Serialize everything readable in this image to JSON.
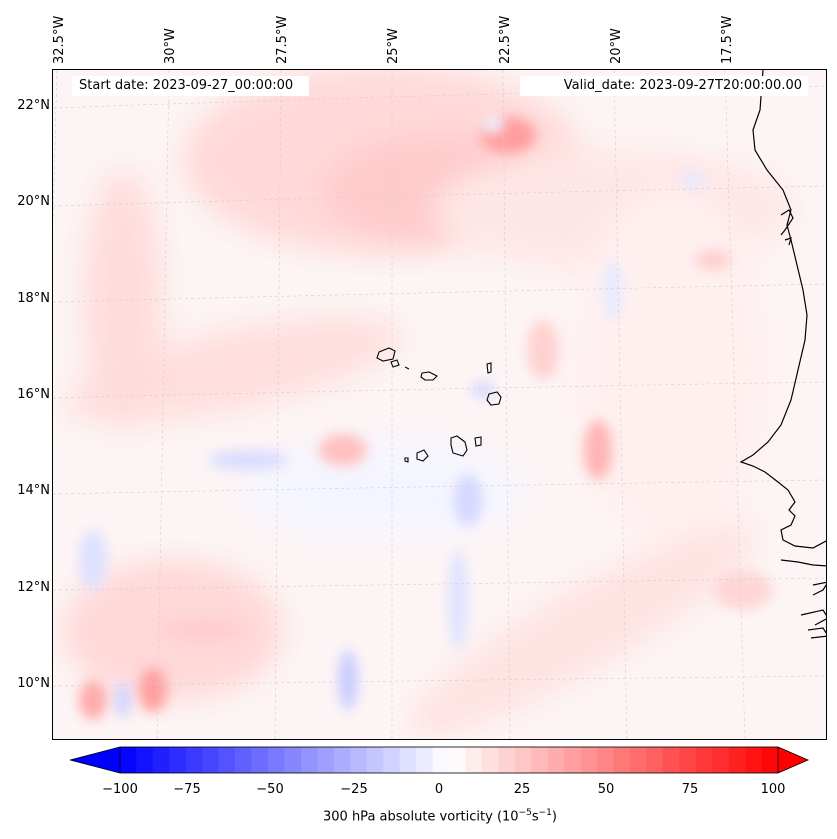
{
  "header": {
    "start_date": "Start date: 2023-09-27_00:00:00",
    "valid_date": "Valid_date: 2023-09-27T20:00:00.00"
  },
  "axes": {
    "longitude_labels": [
      "32.5°W",
      "30°W",
      "27.5°W",
      "25°W",
      "22.5°W",
      "20°W",
      "17.5°W"
    ],
    "latitude_labels": [
      "22°N",
      "20°N",
      "18°N",
      "16°N",
      "14°N",
      "12°N",
      "10°N"
    ]
  },
  "colorbar": {
    "label": "300 hPa absolute vorticity (10",
    "label_exp1": "−5",
    "label_mid": "s",
    "label_exp2": "−1",
    "label_end": ")",
    "ticks": [
      "−100",
      "−75",
      "−50",
      "−25",
      "0",
      "25",
      "50",
      "75",
      "100"
    ],
    "min": -100,
    "max": 100,
    "step": 5,
    "low_color": "#0000ff",
    "high_color": "#ff0000",
    "mid_color": "#ffffff"
  },
  "map": {
    "field": "300 hPa absolute vorticity",
    "coastline_color": "#000000",
    "gridline_color": "#c8c8c8"
  }
}
